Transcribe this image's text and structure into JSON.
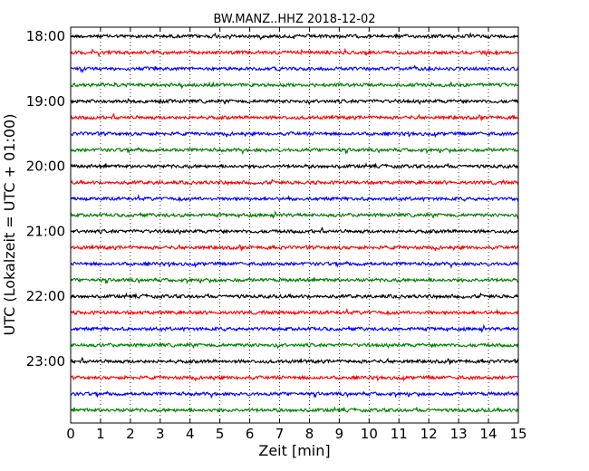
{
  "chart_data": {
    "type": "line",
    "title": "BW.MANZ..HHZ 2018-12-02",
    "xlabel": "Zeit  [min]",
    "ylabel": "UTC (Lokalzeit = UTC + 01:00)",
    "xlim": [
      0,
      15
    ],
    "x_ticks": [
      0,
      1,
      2,
      3,
      4,
      5,
      6,
      7,
      8,
      9,
      10,
      11,
      12,
      13,
      14,
      15
    ],
    "y_tick_labels": [
      "18:00",
      "19:00",
      "20:00",
      "21:00",
      "22:00",
      "23:00"
    ],
    "y_tick_rows": [
      0,
      4,
      8,
      12,
      16,
      20
    ],
    "trace_colors": [
      "#000000",
      "#ff0000",
      "#0000ff",
      "#007f00"
    ],
    "trace_count": 24,
    "minutes_per_trace": 15,
    "vertical_grid": "dotted",
    "description": "Dayplot of seismic noise, each row is a 15-minute trace starting at 18:00 UTC"
  }
}
